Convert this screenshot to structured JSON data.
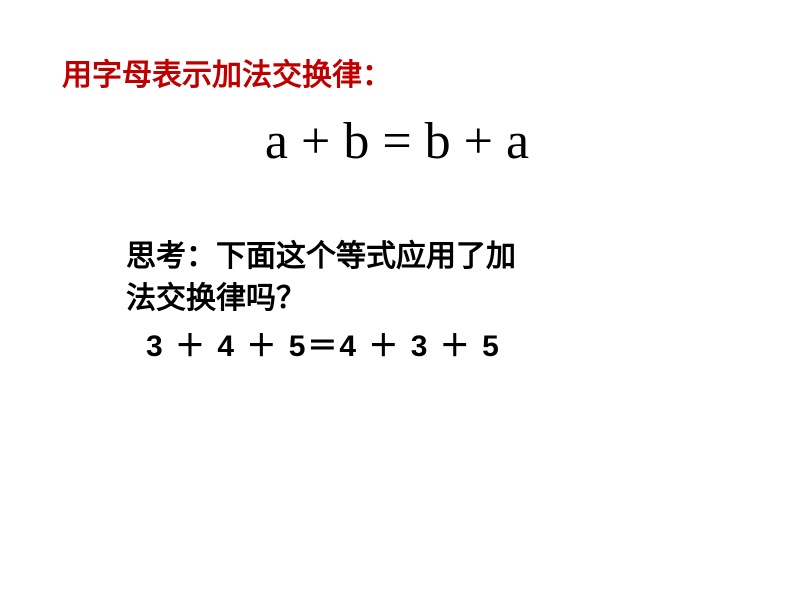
{
  "heading": {
    "text": "用字母表示加法交换律：",
    "color": "#c00000",
    "fontsize": 30
  },
  "equation": {
    "text": "a + b = b + a",
    "color": "#000000",
    "fontsize": 52
  },
  "question": {
    "line1": "思考：下面这个等式应用了加",
    "line2": "法交换律吗？",
    "example": "3 ＋ 4 ＋ 5＝4 ＋ 3 ＋ 5",
    "color": "#000000",
    "fontsize": 30
  },
  "style": {
    "background": "#ffffff"
  }
}
